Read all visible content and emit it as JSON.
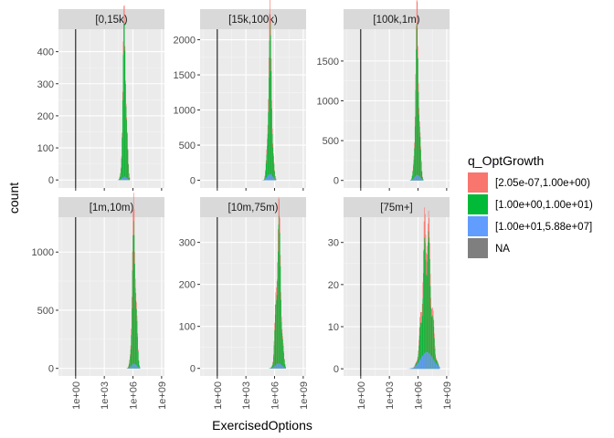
{
  "chart_data": {
    "type": "histogram",
    "xlabel": "ExercisedOptions",
    "ylabel": "count",
    "x_scale": "log10",
    "x_tick_labels": [
      "1e+00",
      "1e+03",
      "1e+06",
      "1e+09"
    ],
    "x_tick_values": [
      1,
      1000,
      1000000,
      1000000000
    ],
    "vline_x": 1,
    "stacked": true,
    "grid": true,
    "legend": {
      "title": "q_OptGrowth",
      "placement": "right",
      "entries": [
        {
          "label": "[2.05e-07,1.00e+00)",
          "color": "#F8766D"
        },
        {
          "label": "[1.00e+00,1.00e+01)",
          "color": "#00BA38"
        },
        {
          "label": "[1.00e+01,5.88e+07]",
          "color": "#619CFF"
        },
        {
          "label": "NA",
          "color": "#7F7F7F"
        }
      ]
    },
    "panels": [
      {
        "strip": "[0,15k)",
        "ylim": [
          -25,
          470
        ],
        "y_ticks": [
          0,
          100,
          200,
          300,
          400
        ],
        "peak_log10_x": 5.1,
        "spread": 0.18,
        "peaks": {
          "red": 465,
          "green": 440,
          "blue": 10
        }
      },
      {
        "strip": "[15k,100k)",
        "ylim": [
          -110,
          2150
        ],
        "y_ticks": [
          0,
          500,
          1000,
          1500,
          2000
        ],
        "peak_log10_x": 5.5,
        "spread": 0.2,
        "peaks": {
          "red": 2050,
          "green": 1800,
          "blue": 90
        }
      },
      {
        "strip": "[100k,1m)",
        "ylim": [
          -95,
          1900
        ],
        "y_ticks": [
          0,
          500,
          1000,
          1500
        ],
        "peak_log10_x": 5.9,
        "spread": 0.2,
        "peaks": {
          "red": 1850,
          "green": 1650,
          "blue": 70
        }
      },
      {
        "strip": "[1m,10m)",
        "ylim": [
          -65,
          1300
        ],
        "y_ticks": [
          0,
          500,
          1000
        ],
        "peak_log10_x": 6.1,
        "spread": 0.2,
        "peaks": {
          "red": 1250,
          "green": 1100,
          "blue": 40
        }
      },
      {
        "strip": "[10m,75m)",
        "ylim": [
          -18,
          360
        ],
        "y_ticks": [
          0,
          100,
          200,
          300
        ],
        "peak_log10_x": 6.4,
        "spread": 0.25,
        "peaks": {
          "red": 340,
          "green": 300,
          "blue": 12
        }
      },
      {
        "strip": "[75m+]",
        "ylim": [
          -1.7,
          36
        ],
        "y_ticks": [
          0,
          10,
          20,
          30
        ],
        "peak_log10_x": 6.9,
        "spread": 0.45,
        "peaks": {
          "red": 34,
          "green": 29,
          "blue": 4
        }
      }
    ]
  },
  "colors": {
    "panel_bg": "#EBEBEB",
    "strip_bg": "#D9D9D9",
    "grid_major": "#FFFFFF",
    "vline": "#000000"
  }
}
